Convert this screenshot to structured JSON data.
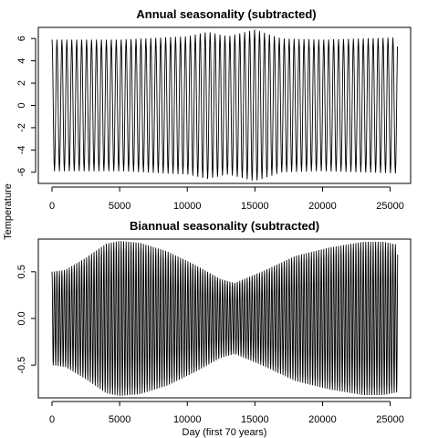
{
  "figure": {
    "ylabel": "Temperature",
    "xlabel": "Day (first 70 years)"
  },
  "chart_data": [
    {
      "type": "line",
      "title": "Annual seasonality (subtracted)",
      "xlabel": "",
      "ylabel": "Temperature",
      "xlim": [
        0,
        25567
      ],
      "ylim": [
        -7,
        7
      ],
      "x_ticks": [
        0,
        5000,
        10000,
        15000,
        20000,
        25000
      ],
      "y_ticks": [
        -6,
        -4,
        -2,
        0,
        2,
        4,
        6
      ],
      "y_tick_labels": [
        "-6",
        "-4",
        "-2",
        "0",
        "2",
        "4",
        "6"
      ],
      "grid": false,
      "series": [
        {
          "period_days": 365.25,
          "amplitude_envelope": {
            "x": [
              0,
              5000,
              10000,
              11500,
              13000,
              15000,
              17000,
              20000,
              25567
            ],
            "amplitude": [
              5.9,
              5.9,
              6.2,
              6.6,
              6.2,
              6.8,
              6.0,
              5.9,
              6.1
            ]
          }
        }
      ]
    },
    {
      "type": "line",
      "title": "Biannual seasonality (subtracted)",
      "xlabel": "Day (first 70 years)",
      "ylabel": "Temperature",
      "xlim": [
        0,
        25567
      ],
      "ylim": [
        -0.85,
        0.85
      ],
      "x_ticks": [
        0,
        5000,
        10000,
        15000,
        20000,
        25000
      ],
      "y_ticks": [
        -0.5,
        0.0,
        0.5
      ],
      "y_tick_labels": [
        "-0.5",
        "0.0",
        "0.5"
      ],
      "grid": false,
      "series": [
        {
          "period_days": 182.625,
          "amplitude_envelope": {
            "x": [
              0,
              1000,
              2500,
              4000,
              5000,
              6500,
              8500,
              10500,
              12500,
              13500,
              15500,
              18000,
              20500,
              23000,
              24500,
              25567
            ],
            "amplitude": [
              0.5,
              0.52,
              0.65,
              0.8,
              0.83,
              0.81,
              0.72,
              0.58,
              0.42,
              0.38,
              0.5,
              0.67,
              0.76,
              0.82,
              0.82,
              0.79
            ]
          }
        }
      ]
    }
  ]
}
